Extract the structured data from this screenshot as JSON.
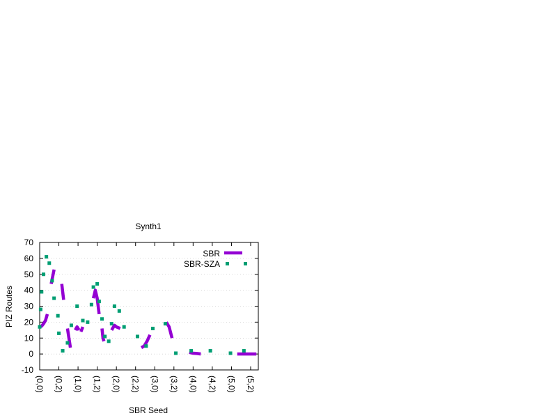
{
  "chart_data": {
    "type": "line",
    "title": "Synth1",
    "xlabel": "SBR Seed",
    "ylabel": "PIZ Routes",
    "ylim": [
      -10,
      70
    ],
    "yticks": [
      -10,
      0,
      10,
      20,
      30,
      40,
      50,
      60,
      70
    ],
    "xlim": [
      0,
      22.8
    ],
    "xtick_labels": [
      "(0,0)",
      "(0,2)",
      "(1,0)",
      "(1,2)",
      "(2,0)",
      "(2,2)",
      "(3,0)",
      "(3,2)",
      "(4,0)",
      "(4,2)",
      "(5,0)",
      "(5,2)"
    ],
    "grid": true,
    "legend_position": "top-right",
    "colors": {
      "SBR": "#9400d3",
      "SBR-SZA": "#009e73"
    },
    "series": [
      {
        "name": "SBR",
        "style": "dashed",
        "segments": [
          [
            [
              0,
              17
            ],
            [
              0.2,
              17.5
            ],
            [
              0.4,
              19
            ],
            [
              0.6,
              21
            ],
            [
              0.8,
              25
            ]
          ],
          [
            [
              1.2,
              44
            ],
            [
              1.4,
              50
            ],
            [
              1.5,
              53
            ]
          ],
          [
            [
              2.3,
              44
            ],
            [
              2.5,
              34
            ]
          ],
          [
            [
              2.9,
              16
            ],
            [
              3.1,
              8
            ],
            [
              3.2,
              4
            ]
          ],
          [
            [
              3.7,
              15
            ],
            [
              3.9,
              17
            ],
            [
              4.1,
              15
            ]
          ],
          [
            [
              4.3,
              14
            ],
            [
              4.5,
              17
            ]
          ],
          [
            [
              5.6,
              35
            ],
            [
              5.8,
              40
            ],
            [
              6.0,
              35
            ],
            [
              6.2,
              25
            ]
          ],
          [
            [
              6.5,
              16
            ],
            [
              6.6,
              10
            ],
            [
              6.7,
              8
            ]
          ],
          [
            [
              7.5,
              15
            ],
            [
              7.8,
              18
            ],
            [
              8.0,
              17
            ],
            [
              8.4,
              16
            ]
          ],
          [
            [
              10.6,
              4
            ],
            [
              10.9,
              5
            ],
            [
              11.2,
              8
            ],
            [
              11.5,
              12
            ]
          ],
          [
            [
              13.2,
              20
            ],
            [
              13.5,
              17
            ],
            [
              13.8,
              10
            ]
          ],
          [
            [
              15.6,
              1
            ],
            [
              16.0,
              0.5
            ],
            [
              16.4,
              0.3
            ],
            [
              16.8,
              0
            ]
          ],
          [
            [
              20.6,
              0
            ],
            [
              21.4,
              0
            ],
            [
              22.6,
              0
            ]
          ]
        ]
      },
      {
        "name": "SBR-SZA",
        "style": "dotted",
        "points": [
          [
            0,
            17
          ],
          [
            0.1,
            28
          ],
          [
            0.2,
            39
          ],
          [
            0.4,
            50
          ],
          [
            0.7,
            61
          ],
          [
            1.0,
            57
          ],
          [
            1.3,
            46
          ],
          [
            1.5,
            35
          ],
          [
            1.9,
            24
          ],
          [
            2.0,
            13
          ],
          [
            2.4,
            2
          ],
          [
            2.9,
            7
          ],
          [
            3.3,
            18
          ],
          [
            3.9,
            30
          ],
          [
            4.5,
            21
          ],
          [
            5.0,
            20
          ],
          [
            5.4,
            31
          ],
          [
            5.6,
            42
          ],
          [
            6.0,
            44
          ],
          [
            6.2,
            33
          ],
          [
            6.5,
            22
          ],
          [
            6.8,
            11
          ],
          [
            7.2,
            8
          ],
          [
            7.5,
            19
          ],
          [
            7.8,
            30
          ],
          [
            8.3,
            27
          ],
          [
            8.8,
            17
          ],
          [
            10.2,
            11
          ],
          [
            11.1,
            5
          ],
          [
            11.8,
            16
          ],
          [
            13.1,
            19
          ],
          [
            14.2,
            0.5
          ],
          [
            15.8,
            2
          ],
          [
            17.8,
            2
          ],
          [
            19.9,
            0.5
          ],
          [
            21.3,
            2
          ]
        ]
      }
    ]
  }
}
